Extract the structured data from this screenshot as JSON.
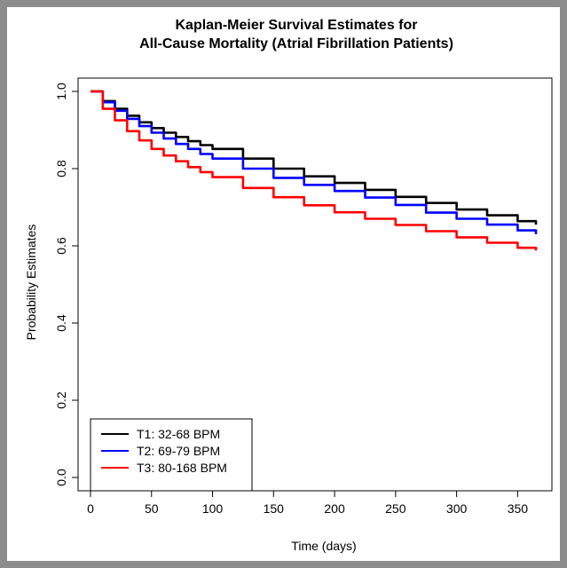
{
  "chart_data": {
    "type": "line",
    "title_line1": "Kaplan-Meier Survival Estimates for",
    "title_line2": "All-Cause Mortality (Atrial Fibrillation Patients)",
    "xlabel": "Time (days)",
    "ylabel": "Probability Estimates",
    "xlim": [
      0,
      365
    ],
    "ylim": [
      0,
      1
    ],
    "x_ticks": [
      "0",
      "50",
      "100",
      "150",
      "200",
      "250",
      "300",
      "350"
    ],
    "y_ticks": [
      "0.0",
      "0.2",
      "0.4",
      "0.6",
      "0.8",
      "1.0"
    ],
    "grid": false,
    "legend_position": "bottom-left",
    "series": [
      {
        "name": "T1: 32-68 BPM",
        "color": "#000000",
        "x": [
          0,
          10,
          20,
          30,
          40,
          50,
          60,
          70,
          80,
          90,
          100,
          125,
          150,
          175,
          200,
          225,
          250,
          275,
          300,
          325,
          350,
          365
        ],
        "y": [
          1.0,
          0.975,
          0.955,
          0.937,
          0.92,
          0.905,
          0.893,
          0.882,
          0.871,
          0.861,
          0.851,
          0.826,
          0.8,
          0.78,
          0.763,
          0.745,
          0.727,
          0.711,
          0.694,
          0.679,
          0.664,
          0.655
        ]
      },
      {
        "name": "T2: 69-79 BPM",
        "color": "#0000ff",
        "x": [
          0,
          10,
          20,
          30,
          40,
          50,
          60,
          70,
          80,
          90,
          100,
          125,
          150,
          175,
          200,
          225,
          250,
          275,
          300,
          325,
          350,
          365
        ],
        "y": [
          1.0,
          0.972,
          0.95,
          0.929,
          0.91,
          0.893,
          0.878,
          0.864,
          0.851,
          0.838,
          0.826,
          0.8,
          0.776,
          0.758,
          0.742,
          0.725,
          0.706,
          0.686,
          0.67,
          0.655,
          0.64,
          0.63
        ]
      },
      {
        "name": "T3: 80-168 BPM",
        "color": "#ff0000",
        "x": [
          0,
          10,
          20,
          30,
          40,
          50,
          60,
          70,
          80,
          90,
          100,
          125,
          150,
          175,
          200,
          225,
          250,
          275,
          300,
          325,
          350,
          365
        ],
        "y": [
          1.0,
          0.955,
          0.925,
          0.897,
          0.873,
          0.851,
          0.834,
          0.819,
          0.804,
          0.791,
          0.778,
          0.75,
          0.726,
          0.705,
          0.687,
          0.67,
          0.654,
          0.638,
          0.622,
          0.608,
          0.595,
          0.588
        ]
      }
    ]
  }
}
